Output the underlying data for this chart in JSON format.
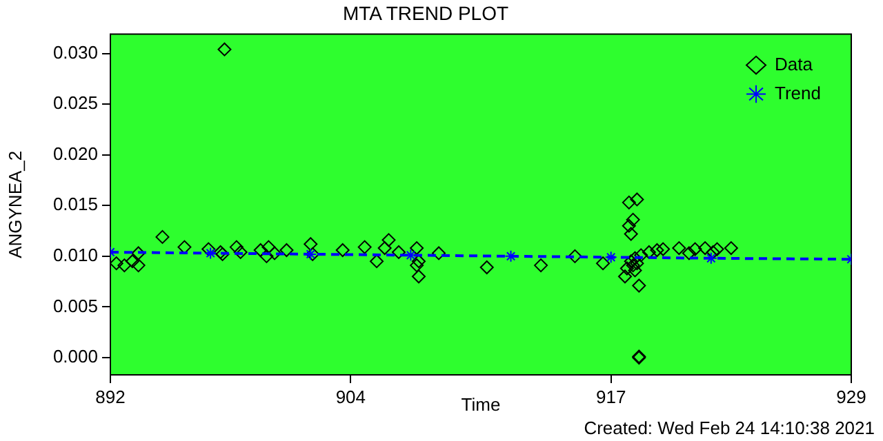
{
  "chart_data": {
    "type": "scatter",
    "title": "MTA TREND PLOT",
    "xlabel": "Time",
    "ylabel": "ANGYNEA_2",
    "xlim": [
      892,
      929
    ],
    "xticks": [
      892,
      904,
      917,
      929
    ],
    "ylim": [
      -0.0017,
      0.0319
    ],
    "yticks": [
      {
        "value": 0,
        "label": "0.000"
      },
      {
        "value": 0.005,
        "label": "0.005"
      },
      {
        "value": 0.01,
        "label": "0.010"
      },
      {
        "value": 0.015,
        "label": "0.015"
      },
      {
        "value": 0.02,
        "label": "0.020"
      },
      {
        "value": 0.025,
        "label": "0.025"
      },
      {
        "value": 0.03,
        "label": "0.030"
      }
    ],
    "grid": false,
    "legend": "top right",
    "annotations": [
      "Created: Wed Feb 24 14:10:38 2021"
    ],
    "series": [
      {
        "name": "Data",
        "type": "scatter",
        "marker": "diamond",
        "color": "#000000",
        "x": [
          892.3,
          892.7,
          893.1,
          893.4,
          893.4,
          894.6,
          895.7,
          896.9,
          897.5,
          897.6,
          897.7,
          898.3,
          898.5,
          899.5,
          899.8,
          899.9,
          900.2,
          900.8,
          902.0,
          902.1,
          903.6,
          904.7,
          905.3,
          905.7,
          905.9,
          906.4,
          907.3,
          907.3,
          907.4,
          907.4,
          908.4,
          910.8,
          913.5,
          915.2,
          916.6,
          917.7,
          917.8,
          917.9,
          917.9,
          918.0,
          918.0,
          918.1,
          918.1,
          918.2,
          918.2,
          918.3,
          918.3,
          918.4,
          918.4,
          918.4,
          918.5,
          918.9,
          919.3,
          919.6,
          920.4,
          920.9,
          921.2,
          921.7,
          922.1,
          922.3,
          923.0
        ],
        "values": [
          0.0093,
          0.0091,
          0.0095,
          0.0103,
          0.0091,
          0.0119,
          0.0109,
          0.0107,
          0.0104,
          0.0102,
          0.0304,
          0.0109,
          0.0104,
          0.0106,
          0.01,
          0.0109,
          0.0103,
          0.0106,
          0.0112,
          0.0102,
          0.0106,
          0.0109,
          0.0095,
          0.0108,
          0.0116,
          0.0104,
          0.0108,
          0.0091,
          0.008,
          0.0095,
          0.0103,
          0.0089,
          0.0091,
          0.01,
          0.0093,
          0.008,
          0.0088,
          0.0153,
          0.013,
          0.0122,
          0.0095,
          0.0136,
          0.0091,
          0.0098,
          0.0086,
          0.0156,
          0.0093,
          0.0071,
          0.0001,
          0.0,
          0.0101,
          0.0104,
          0.0106,
          0.0107,
          0.0108,
          0.0103,
          0.0107,
          0.0108,
          0.0104,
          0.0107,
          0.0108
        ]
      },
      {
        "name": "Trend",
        "type": "line",
        "marker": "cross",
        "line_style": "dashed",
        "color": "#0000ff",
        "x": [
          892,
          897,
          902,
          907,
          912,
          917,
          922,
          929
        ],
        "values": [
          0.0104,
          0.0103,
          0.0102,
          0.0101,
          0.01,
          0.0099,
          0.0098,
          0.0097
        ]
      }
    ]
  }
}
